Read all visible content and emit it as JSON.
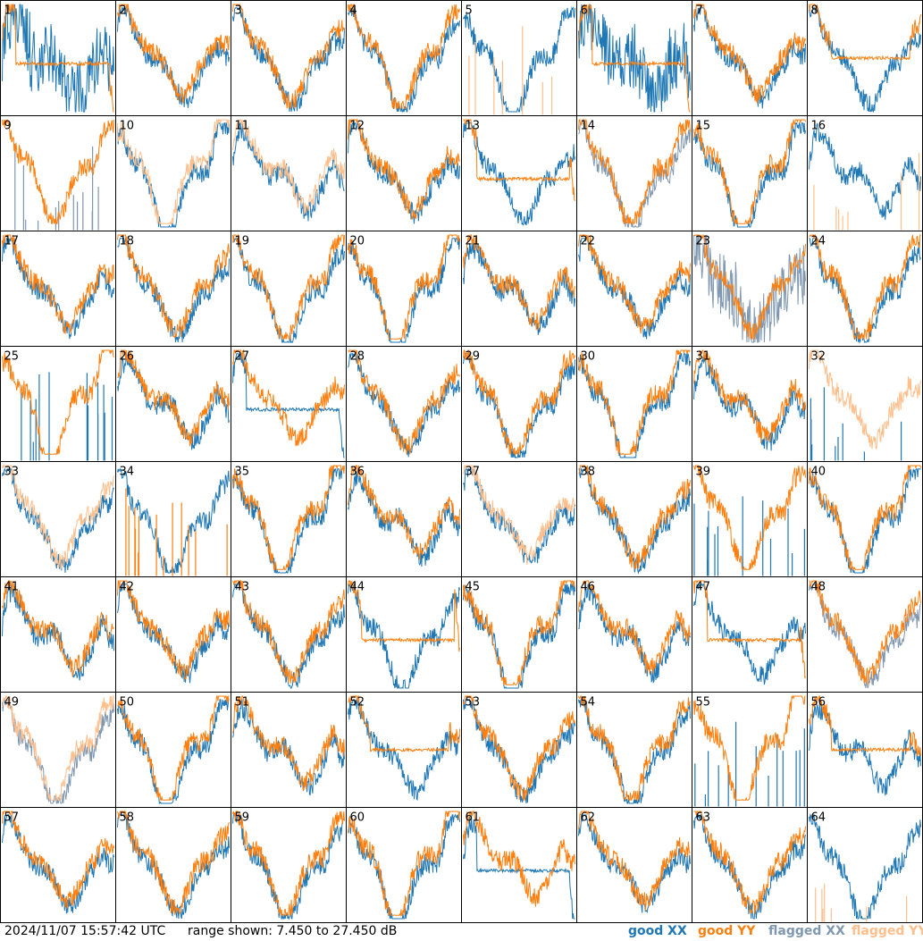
{
  "chart_data": {
    "type": "line",
    "layout": "small-multiples",
    "panel_count": 64,
    "rows": 8,
    "cols": 8,
    "panels": [
      {
        "label": "1",
        "xx": "good",
        "yy": "good",
        "xx_style": "noisy",
        "yy_style": "dip"
      },
      {
        "label": "2",
        "xx": "good",
        "yy": "good"
      },
      {
        "label": "3",
        "xx": "good",
        "yy": "good"
      },
      {
        "label": "4",
        "xx": "good",
        "yy": "good"
      },
      {
        "label": "5",
        "xx": "good",
        "yy": "flagged",
        "yy_style": "spikes"
      },
      {
        "label": "6",
        "xx": "good",
        "yy": "good",
        "xx_style": "noisy",
        "yy_style": "dip"
      },
      {
        "label": "7",
        "xx": "good",
        "yy": "good"
      },
      {
        "label": "8",
        "xx": "good",
        "yy": "good",
        "yy_style": "flat"
      },
      {
        "label": "9",
        "xx": "flagged",
        "yy": "good",
        "xx_style": "spikes"
      },
      {
        "label": "10",
        "xx": "good",
        "yy": "flagged"
      },
      {
        "label": "11",
        "xx": "good",
        "yy": "flagged"
      },
      {
        "label": "12",
        "xx": "good",
        "yy": "good"
      },
      {
        "label": "13",
        "xx": "good",
        "yy": "good",
        "yy_style": "dip"
      },
      {
        "label": "14",
        "xx": "flagged",
        "yy": "good"
      },
      {
        "label": "15",
        "xx": "good",
        "yy": "good"
      },
      {
        "label": "16",
        "xx": "good",
        "yy": "flagged",
        "yy_style": "spikes"
      },
      {
        "label": "17",
        "xx": "good",
        "yy": "good"
      },
      {
        "label": "18",
        "xx": "good",
        "yy": "good"
      },
      {
        "label": "19",
        "xx": "good",
        "yy": "good"
      },
      {
        "label": "20",
        "xx": "good",
        "yy": "good"
      },
      {
        "label": "21",
        "xx": "good",
        "yy": "good"
      },
      {
        "label": "22",
        "xx": "good",
        "yy": "good"
      },
      {
        "label": "23",
        "xx": "flagged",
        "yy": "good",
        "xx_style": "noisy"
      },
      {
        "label": "24",
        "xx": "good",
        "yy": "good"
      },
      {
        "label": "25",
        "xx": "good",
        "yy": "good",
        "xx_style": "spikes"
      },
      {
        "label": "26",
        "xx": "good",
        "yy": "good"
      },
      {
        "label": "27",
        "xx": "good",
        "yy": "good",
        "xx_style": "dip"
      },
      {
        "label": "28",
        "xx": "good",
        "yy": "good"
      },
      {
        "label": "29",
        "xx": "good",
        "yy": "good"
      },
      {
        "label": "30",
        "xx": "good",
        "yy": "good"
      },
      {
        "label": "31",
        "xx": "good",
        "yy": "good"
      },
      {
        "label": "32",
        "xx": "good",
        "yy": "flagged",
        "xx_style": "spikes"
      },
      {
        "label": "33",
        "xx": "good",
        "yy": "flagged"
      },
      {
        "label": "34",
        "xx": "good",
        "yy": "good",
        "yy_style": "spikes"
      },
      {
        "label": "35",
        "xx": "good",
        "yy": "good"
      },
      {
        "label": "36",
        "xx": "good",
        "yy": "good"
      },
      {
        "label": "37",
        "xx": "good",
        "yy": "flagged"
      },
      {
        "label": "38",
        "xx": "good",
        "yy": "good"
      },
      {
        "label": "39",
        "xx": "good",
        "yy": "good",
        "xx_style": "spikes"
      },
      {
        "label": "40",
        "xx": "good",
        "yy": "good"
      },
      {
        "label": "41",
        "xx": "good",
        "yy": "good"
      },
      {
        "label": "42",
        "xx": "good",
        "yy": "good"
      },
      {
        "label": "43",
        "xx": "good",
        "yy": "good"
      },
      {
        "label": "44",
        "xx": "good",
        "yy": "good",
        "yy_style": "dip"
      },
      {
        "label": "45",
        "xx": "good",
        "yy": "good"
      },
      {
        "label": "46",
        "xx": "good",
        "yy": "good"
      },
      {
        "label": "47",
        "xx": "good",
        "yy": "good",
        "yy_style": "dip"
      },
      {
        "label": "48",
        "xx": "flagged",
        "yy": "good"
      },
      {
        "label": "49",
        "xx": "flagged",
        "yy": "flagged"
      },
      {
        "label": "50",
        "xx": "good",
        "yy": "good"
      },
      {
        "label": "51",
        "xx": "good",
        "yy": "good"
      },
      {
        "label": "52",
        "xx": "good",
        "yy": "good",
        "yy_style": "flat"
      },
      {
        "label": "53",
        "xx": "good",
        "yy": "good"
      },
      {
        "label": "54",
        "xx": "good",
        "yy": "good"
      },
      {
        "label": "55",
        "xx": "good",
        "yy": "good",
        "xx_style": "spikes"
      },
      {
        "label": "56",
        "xx": "good",
        "yy": "good",
        "yy_style": "flat"
      },
      {
        "label": "57",
        "xx": "good",
        "yy": "good"
      },
      {
        "label": "58",
        "xx": "good",
        "yy": "good"
      },
      {
        "label": "59",
        "xx": "good",
        "yy": "good"
      },
      {
        "label": "60",
        "xx": "good",
        "yy": "good"
      },
      {
        "label": "61",
        "xx": "good",
        "yy": "good",
        "xx_style": "dip"
      },
      {
        "label": "62",
        "xx": "good",
        "yy": "good"
      },
      {
        "label": "63",
        "xx": "good",
        "yy": "good"
      },
      {
        "label": "64",
        "xx": "good",
        "yy": "flagged",
        "yy_style": "spikes"
      }
    ],
    "ylim_db": [
      7.45,
      27.45
    ],
    "footer": {
      "timestamp": "2024/11/07 15:57:42 UTC",
      "range_text": "range shown: 7.450 to 27.450 dB"
    },
    "legend": [
      {
        "key": "good_xx",
        "label": "good XX",
        "color": "#1f77b4"
      },
      {
        "key": "good_yy",
        "label": "good YY",
        "color": "#ff7f0e"
      },
      {
        "key": "flagged_xx",
        "label": "flagged XX",
        "color": "#7f97b0"
      },
      {
        "key": "flagged_yy",
        "label": "flagged YY",
        "color": "#ffbf8c"
      }
    ]
  }
}
